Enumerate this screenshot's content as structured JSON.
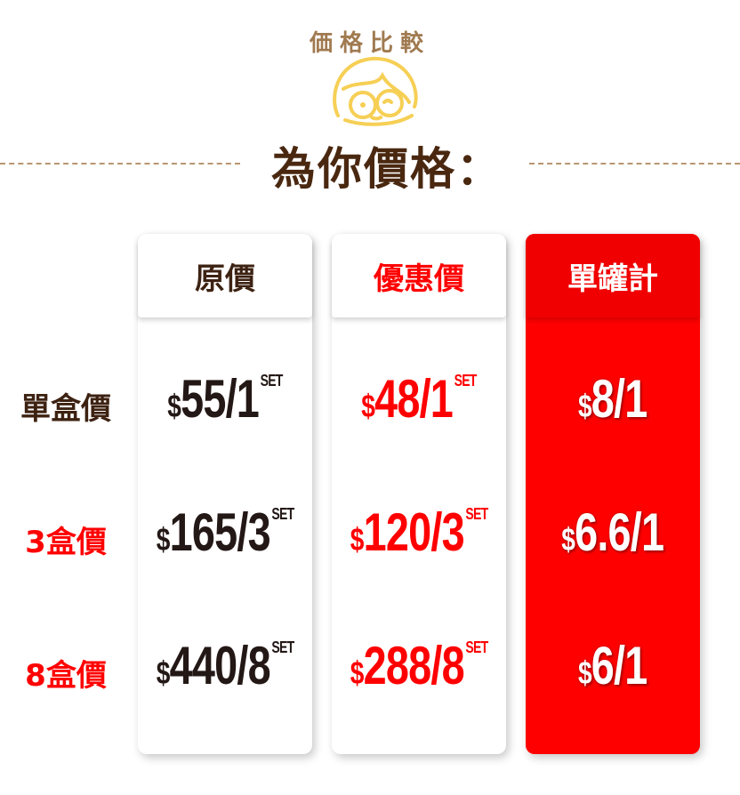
{
  "header": {
    "subtitle": "価格比較",
    "title": "為你價格："
  },
  "columns": [
    {
      "label": "原價",
      "prices": [
        {
          "amount": "55/1",
          "unit": "SET"
        },
        {
          "amount": "165/3",
          "unit": "SET"
        },
        {
          "amount": "440/8",
          "unit": "SET"
        }
      ]
    },
    {
      "label": "優惠價",
      "prices": [
        {
          "amount": "48/1",
          "unit": "SET"
        },
        {
          "amount": "120/3",
          "unit": "SET"
        },
        {
          "amount": "288/8",
          "unit": "SET"
        }
      ]
    },
    {
      "label": "單罐計",
      "prices": [
        {
          "amount": "8/1"
        },
        {
          "amount": "6.6/1"
        },
        {
          "amount": "6/1"
        }
      ]
    }
  ],
  "currency": "$",
  "rows": [
    {
      "label": "單盒價",
      "color": "#3d2212"
    },
    {
      "label": "3盒價",
      "color": "#ff0000"
    },
    {
      "label": "8盒價",
      "color": "#ff0000"
    }
  ],
  "colors": {
    "accent": "#ff0000",
    "brown": "#4a2810",
    "mascot": "#f6cf55"
  }
}
